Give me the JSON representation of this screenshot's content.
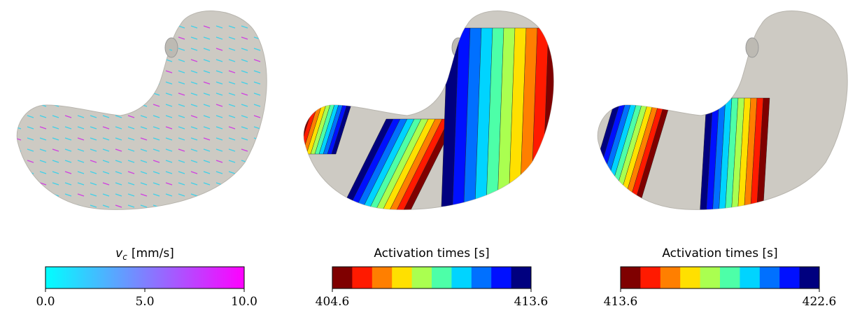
{
  "panels": [
    {
      "colorbar": {
        "variable": "v",
        "subscript": "c",
        "unit": "[mm/s]",
        "colors": [
          "#00ffff",
          "#ff00ff"
        ],
        "lim": [
          0,
          10
        ],
        "ticks": [
          {
            "value": 0,
            "label": "0.0"
          },
          {
            "value": 5,
            "label": "5.0"
          },
          {
            "value": 10,
            "label": "10.0"
          }
        ]
      }
    },
    {
      "colorbar": {
        "title": "Activation times [s]",
        "colors": [
          "#7f0000",
          "#ff1a00",
          "#ff7f00",
          "#ffe000",
          "#aaff50",
          "#4dffa8",
          "#00d4ff",
          "#0070ff",
          "#0010ff",
          "#00007f"
        ],
        "lim": [
          404.6,
          413.6
        ],
        "ticks": [
          404.6,
          413.6
        ]
      }
    },
    {
      "colorbar": {
        "title": "Activation times [s]",
        "colors": [
          "#7f0000",
          "#ff1a00",
          "#ff7f00",
          "#ffe000",
          "#aaff50",
          "#4dffa8",
          "#00d4ff",
          "#0070ff",
          "#0010ff",
          "#00007f"
        ],
        "lim": [
          413.6,
          422.6
        ],
        "ticks": [
          413.6,
          422.6
        ]
      }
    }
  ]
}
